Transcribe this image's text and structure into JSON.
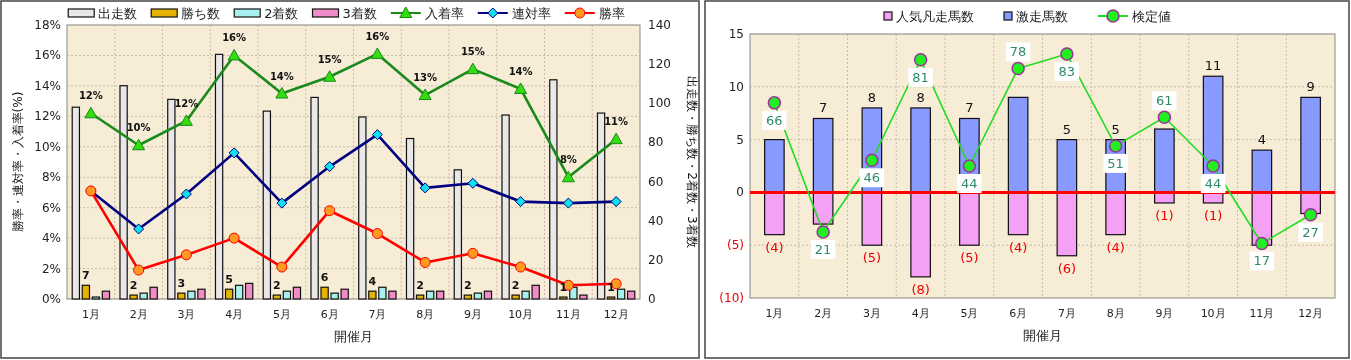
{
  "chart_data": [
    {
      "type": "bar",
      "categories": [
        "1月",
        "2月",
        "3月",
        "4月",
        "5月",
        "6月",
        "7月",
        "8月",
        "9月",
        "10月",
        "11月",
        "12月"
      ],
      "xlabel": "開催月",
      "ylabel": "勝率・連対率・入着率(%)",
      "y2label": "出走数・勝ち数・2着数・3着数",
      "ylim": [
        0,
        18
      ],
      "yticks": [
        {
          "value": 0,
          "label": "0%"
        },
        {
          "value": 2,
          "label": "2%"
        },
        {
          "value": 4,
          "label": "4%"
        },
        {
          "value": 6,
          "label": "6%"
        },
        {
          "value": 8,
          "label": "8%"
        },
        {
          "value": 10,
          "label": "10%"
        },
        {
          "value": 12,
          "label": "12%"
        },
        {
          "value": 14,
          "label": "14%"
        },
        {
          "value": 16,
          "label": "16%"
        },
        {
          "value": 18,
          "label": "18%"
        }
      ],
      "y2lim": [
        0,
        140
      ],
      "y2ticks": [
        0,
        20,
        40,
        60,
        80,
        100,
        120,
        140
      ],
      "grid": true,
      "legend": "top",
      "series": [
        {
          "name": "出走数",
          "color": "#e8e8e8",
          "axis": "y2",
          "values": [
            98,
            109,
            102,
            125,
            96,
            103,
            93,
            82,
            66,
            94,
            112,
            95
          ]
        },
        {
          "name": "勝ち数",
          "color": "#e6b400",
          "axis": "y2",
          "values": [
            7,
            2,
            3,
            5,
            2,
            6,
            4,
            2,
            2,
            2,
            1,
            1
          ],
          "value_labels": [
            "7",
            "2",
            "3",
            "5",
            "2",
            "6",
            "4",
            "2",
            "2",
            "2",
            "1",
            "1"
          ]
        },
        {
          "name": "2着数",
          "color": "#a8f0f0",
          "axis": "y2",
          "values": [
            1,
            3,
            4,
            7,
            4,
            3,
            6,
            4,
            3,
            4,
            6,
            5
          ]
        },
        {
          "name": "3着数",
          "color": "#f08cc8",
          "axis": "y2",
          "values": [
            4,
            6,
            5,
            8,
            6,
            5,
            4,
            4,
            4,
            7,
            2,
            4
          ]
        },
        {
          "name": "入着率",
          "type": "line",
          "color": "#1a8a1a",
          "marker": "triangle",
          "values": [
            12.2,
            10.1,
            11.7,
            16.0,
            13.5,
            14.6,
            16.1,
            13.4,
            15.1,
            13.8,
            8.0,
            10.5
          ],
          "value_labels": [
            "12%",
            "10%",
            "12%",
            "16%",
            "14%",
            "15%",
            "16%",
            "13%",
            "15%",
            "14%",
            "8%",
            "11%"
          ]
        },
        {
          "name": "連対率",
          "type": "line",
          "color": "#000080",
          "marker": "diamond",
          "values": [
            7.1,
            4.6,
            6.9,
            9.6,
            6.3,
            8.7,
            10.8,
            7.3,
            7.6,
            6.4,
            6.3,
            6.4
          ]
        },
        {
          "name": "勝率",
          "type": "line",
          "color": "#ff0000",
          "marker": "circle",
          "values": [
            7.1,
            1.9,
            2.9,
            4.0,
            2.1,
            5.8,
            4.3,
            2.4,
            3.0,
            2.1,
            0.9,
            1.0
          ]
        }
      ]
    },
    {
      "type": "bar",
      "stacked": true,
      "categories": [
        "1月",
        "2月",
        "3月",
        "4月",
        "5月",
        "6月",
        "7月",
        "8月",
        "9月",
        "10月",
        "11月",
        "12月"
      ],
      "xlabel": "開催月",
      "ylim": [
        -10,
        15
      ],
      "yticks": [
        {
          "value": -10,
          "label": "(10)"
        },
        {
          "value": -5,
          "label": "(5)"
        },
        0,
        5,
        10,
        15
      ],
      "y2lim": [
        -2,
        90
      ],
      "grid": true,
      "legend": "top",
      "ref_lines": [
        {
          "axis": "y",
          "value": 0,
          "color": "#ff0000"
        }
      ],
      "series": [
        {
          "name": "人気凡走馬数",
          "color": "#f4a0f4",
          "values": [
            -4,
            -3,
            -5,
            -8,
            -5,
            -4,
            -6,
            -4,
            -1,
            -1,
            -5,
            -2
          ],
          "value_labels": [
            "(4)",
            null,
            "(5)",
            "(8)",
            "(5)",
            "(4)",
            "(6)",
            "(4)",
            "(1)",
            "(1)",
            null,
            null
          ]
        },
        {
          "name": "激走馬数",
          "color": "#8899ff",
          "values": [
            5,
            7,
            8,
            8,
            7,
            9,
            5,
            5,
            6,
            11,
            4,
            9
          ],
          "value_labels": [
            null,
            "7",
            "8",
            "8",
            "7",
            null,
            "5",
            "5",
            null,
            "11",
            "4",
            "9"
          ]
        },
        {
          "name": "検定値",
          "type": "line",
          "color": "#22dd22",
          "marker": "circle",
          "axis": "y2",
          "values": [
            66,
            21,
            46,
            81,
            44,
            78,
            83,
            51,
            61,
            44,
            17,
            27
          ],
          "value_labels": [
            "66",
            "21",
            "46",
            "81",
            "44",
            "78",
            "83",
            "51",
            "61",
            "44",
            "17",
            "27"
          ]
        }
      ]
    }
  ]
}
